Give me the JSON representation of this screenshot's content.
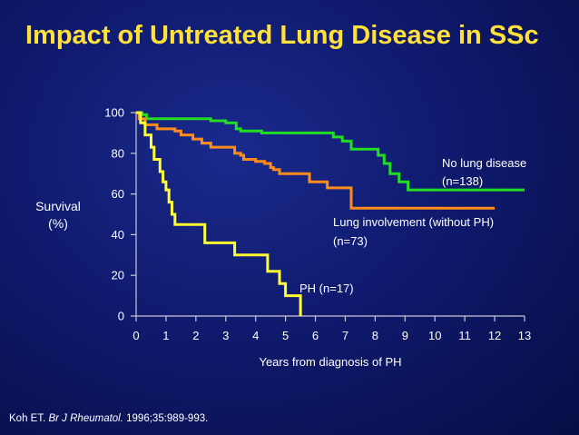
{
  "slide": {
    "title": "Impact of Untreated Lung Disease in SSc",
    "ylabel_line1": "Survival",
    "ylabel_line2": "(%)",
    "citation_author": "Koh ET.",
    "citation_journal": "Br J Rheumatol.",
    "citation_details": "1996;35:989-993."
  },
  "chart_data": {
    "type": "line",
    "step": true,
    "xlabel": "Years from diagnosis of PH",
    "ylabel": "Survival (%)",
    "xlim": [
      0,
      13
    ],
    "ylim": [
      0,
      100
    ],
    "xticks": [
      0,
      1,
      2,
      3,
      4,
      5,
      6,
      7,
      8,
      9,
      10,
      11,
      12,
      13
    ],
    "yticks": [
      0,
      20,
      40,
      60,
      80,
      100
    ],
    "grid": false,
    "series": [
      {
        "name": "No lung disease (n=138)",
        "label_line1": "No lung disease",
        "label_line2": "(n=138)",
        "color": "#22dd22",
        "points": [
          [
            0,
            100
          ],
          [
            0.2,
            99
          ],
          [
            0.35,
            97
          ],
          [
            2.2,
            97
          ],
          [
            2.5,
            96
          ],
          [
            3.0,
            95
          ],
          [
            3.35,
            92
          ],
          [
            3.5,
            91
          ],
          [
            4.0,
            91
          ],
          [
            4.2,
            90
          ],
          [
            6.5,
            90
          ],
          [
            6.6,
            88
          ],
          [
            6.9,
            86
          ],
          [
            7.2,
            82
          ],
          [
            7.8,
            82
          ],
          [
            8.1,
            79
          ],
          [
            8.3,
            75
          ],
          [
            8.5,
            70
          ],
          [
            8.8,
            66
          ],
          [
            9.1,
            62
          ],
          [
            12.2,
            62
          ],
          [
            13,
            62
          ]
        ]
      },
      {
        "name": "Lung involvement (without PH) (n=73)",
        "label_line1": "Lung involvement (without PH)",
        "label_line2": "(n=73)",
        "color": "#ff8c1a",
        "points": [
          [
            0,
            100
          ],
          [
            0.1,
            97
          ],
          [
            0.3,
            94
          ],
          [
            0.7,
            92
          ],
          [
            1.3,
            91
          ],
          [
            1.5,
            89
          ],
          [
            1.9,
            87
          ],
          [
            2.2,
            85
          ],
          [
            2.5,
            83
          ],
          [
            3.3,
            80
          ],
          [
            3.5,
            79
          ],
          [
            3.6,
            77
          ],
          [
            4.0,
            76
          ],
          [
            4.3,
            75
          ],
          [
            4.5,
            73
          ],
          [
            4.6,
            72
          ],
          [
            4.8,
            70
          ],
          [
            5.8,
            66
          ],
          [
            6.4,
            63
          ],
          [
            7.2,
            53
          ],
          [
            12.0,
            53
          ]
        ]
      },
      {
        "name": "PH (n=17)",
        "label_line1": "PH (n=17)",
        "label_line2": "",
        "color": "#ffff33",
        "points": [
          [
            0,
            100
          ],
          [
            0.15,
            95
          ],
          [
            0.3,
            89
          ],
          [
            0.5,
            83
          ],
          [
            0.6,
            77
          ],
          [
            0.8,
            71
          ],
          [
            0.9,
            66
          ],
          [
            1.0,
            62
          ],
          [
            1.1,
            56
          ],
          [
            1.2,
            50
          ],
          [
            1.3,
            45
          ],
          [
            2.0,
            45
          ],
          [
            2.3,
            36
          ],
          [
            3.0,
            36
          ],
          [
            3.3,
            30
          ],
          [
            4.4,
            22
          ],
          [
            4.8,
            16
          ],
          [
            5.0,
            10
          ],
          [
            5.5,
            0
          ]
        ]
      }
    ]
  }
}
